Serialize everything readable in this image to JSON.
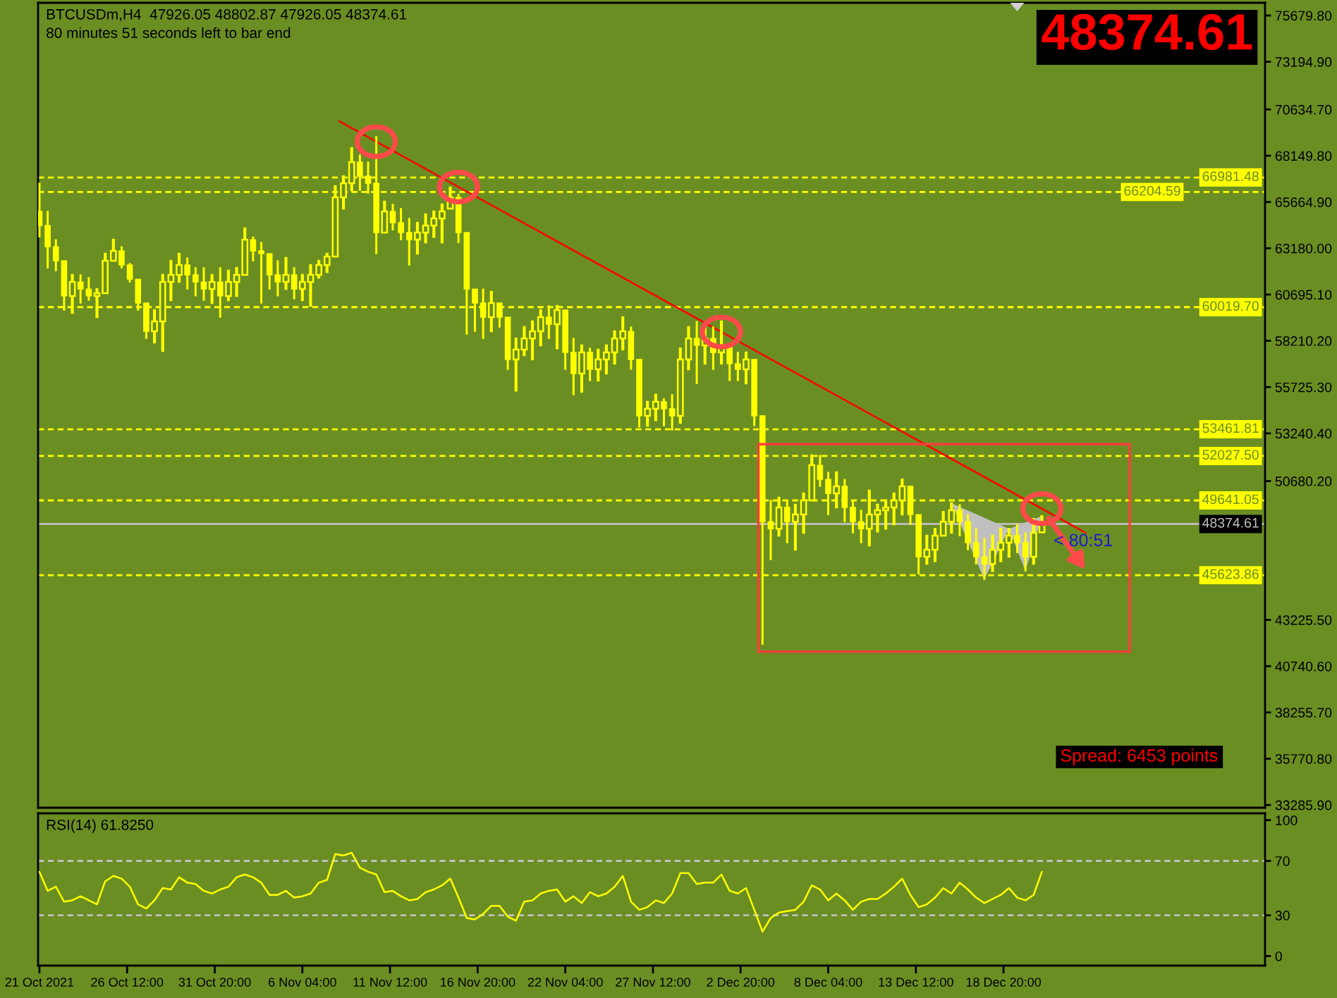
{
  "chart_data": [
    {
      "type": "candlestick",
      "title": "BTCUSDm,H4  47926.05 48802.87 47926.05 48374.61",
      "subtitle": "80 minutes 51 seconds left to bar end",
      "color": "#ffff00",
      "x": [
        "2021-10-21T04:00",
        "2021-10-21T16:00",
        "2021-10-22T04:00",
        "2021-10-22T16:00",
        "2021-10-23T04:00",
        "2021-10-23T16:00",
        "2021-10-24T04:00",
        "2021-10-24T16:00",
        "2021-10-25T04:00",
        "2021-10-25T16:00",
        "2021-10-26T04:00",
        "2021-10-26T16:00",
        "2021-10-27T04:00",
        "2021-10-27T16:00",
        "2021-10-28T04:00",
        "2021-10-28T16:00",
        "2021-10-29T04:00",
        "2021-10-29T16:00",
        "2021-10-30T04:00",
        "2021-10-30T16:00",
        "2021-10-31T04:00",
        "2021-10-31T16:00",
        "2021-11-01T04:00",
        "2021-11-01T16:00",
        "2021-11-02T04:00",
        "2021-11-02T16:00",
        "2021-11-03T04:00",
        "2021-11-03T16:00",
        "2021-11-04T04:00",
        "2021-11-04T16:00",
        "2021-11-05T04:00",
        "2021-11-05T16:00",
        "2021-11-06T04:00",
        "2021-11-06T16:00",
        "2021-11-07T04:00",
        "2021-11-07T16:00",
        "2021-11-08T04:00",
        "2021-11-08T16:00",
        "2021-11-09T04:00",
        "2021-11-09T16:00",
        "2021-11-10T04:00",
        "2021-11-10T16:00",
        "2021-11-11T04:00",
        "2021-11-11T16:00",
        "2021-11-12T04:00",
        "2021-11-12T16:00",
        "2021-11-13T04:00",
        "2021-11-13T16:00",
        "2021-11-14T04:00",
        "2021-11-14T16:00",
        "2021-11-15T04:00",
        "2021-11-15T16:00",
        "2021-11-16T04:00",
        "2021-11-16T16:00",
        "2021-11-17T04:00",
        "2021-11-17T16:00",
        "2021-11-18T04:00",
        "2021-11-18T16:00",
        "2021-11-19T04:00",
        "2021-11-19T16:00",
        "2021-11-20T04:00",
        "2021-11-20T16:00",
        "2021-11-21T04:00",
        "2021-11-21T16:00",
        "2021-11-22T04:00",
        "2021-11-22T16:00",
        "2021-11-23T04:00",
        "2021-11-23T16:00",
        "2021-11-24T04:00",
        "2021-11-24T16:00",
        "2021-11-25T04:00",
        "2021-11-25T16:00",
        "2021-11-26T04:00",
        "2021-11-26T16:00",
        "2021-11-27T04:00",
        "2021-11-27T16:00",
        "2021-11-28T04:00",
        "2021-11-28T16:00",
        "2021-11-29T04:00",
        "2021-11-29T16:00",
        "2021-11-30T04:00",
        "2021-11-30T16:00",
        "2021-12-01T04:00",
        "2021-12-01T16:00",
        "2021-12-02T04:00",
        "2021-12-02T16:00",
        "2021-12-03T04:00",
        "2021-12-03T16:00",
        "2021-12-04T04:00",
        "2021-12-04T16:00",
        "2021-12-05T04:00",
        "2021-12-05T16:00",
        "2021-12-06T04:00",
        "2021-12-06T16:00",
        "2021-12-07T04:00",
        "2021-12-07T16:00",
        "2021-12-08T04:00",
        "2021-12-08T16:00",
        "2021-12-09T04:00",
        "2021-12-09T16:00",
        "2021-12-10T04:00",
        "2021-12-10T16:00",
        "2021-12-11T04:00",
        "2021-12-11T16:00",
        "2021-12-12T04:00",
        "2021-12-12T16:00",
        "2021-12-13T04:00",
        "2021-12-13T16:00",
        "2021-12-14T04:00",
        "2021-12-14T16:00",
        "2021-12-15T04:00",
        "2021-12-15T16:00",
        "2021-12-16T04:00",
        "2021-12-16T16:00",
        "2021-12-17T04:00",
        "2021-12-17T16:00",
        "2021-12-18T04:00",
        "2021-12-18T16:00",
        "2021-12-19T04:00",
        "2021-12-19T16:00",
        "2021-12-20T04:00",
        "2021-12-20T16:00",
        "2021-12-21T04:00"
      ],
      "ohlc": [
        [
          65160,
          66670,
          63790,
          64400
        ],
        [
          64400,
          65160,
          62130,
          63260
        ],
        [
          63260,
          63640,
          61980,
          62510
        ],
        [
          62510,
          62510,
          59860,
          60620
        ],
        [
          60620,
          61750,
          59710,
          61370
        ],
        [
          61370,
          61750,
          60240,
          60990
        ],
        [
          60990,
          61600,
          60390,
          60620
        ],
        [
          60620,
          60990,
          59480,
          60770
        ],
        [
          60770,
          62890,
          60770,
          62510
        ],
        [
          62510,
          63640,
          62510,
          63040
        ],
        [
          63040,
          63260,
          62130,
          62280
        ],
        [
          62280,
          62360,
          61370,
          61520
        ],
        [
          61520,
          61520,
          59860,
          60240
        ],
        [
          60240,
          60240,
          58340,
          58720
        ],
        [
          58720,
          59860,
          58120,
          59250
        ],
        [
          59250,
          61750,
          57660,
          61370
        ],
        [
          61370,
          62510,
          60390,
          61750
        ],
        [
          61750,
          62890,
          61370,
          62280
        ],
        [
          62280,
          62660,
          60990,
          61750
        ],
        [
          61750,
          62130,
          60620,
          61370
        ],
        [
          61370,
          62130,
          60390,
          60990
        ],
        [
          60990,
          61750,
          60240,
          61370
        ],
        [
          61370,
          62130,
          59480,
          60620
        ],
        [
          60620,
          61980,
          60390,
          61370
        ],
        [
          61370,
          62130,
          60620,
          61750
        ],
        [
          61750,
          64250,
          61750,
          63640
        ],
        [
          63640,
          63790,
          62510,
          63040
        ],
        [
          63040,
          63490,
          60240,
          62890
        ],
        [
          62890,
          62890,
          60990,
          61750
        ],
        [
          61750,
          62510,
          60620,
          61370
        ],
        [
          61370,
          62660,
          60990,
          61750
        ],
        [
          61750,
          62130,
          60460,
          60990
        ],
        [
          60990,
          61750,
          60390,
          61370
        ],
        [
          61370,
          62280,
          60090,
          61750
        ],
        [
          61750,
          62510,
          61600,
          62280
        ],
        [
          62280,
          62890,
          61900,
          62740
        ],
        [
          62740,
          66520,
          62740,
          65910
        ],
        [
          65910,
          67050,
          65310,
          66670
        ],
        [
          66670,
          68560,
          66290,
          67810
        ],
        [
          67810,
          68190,
          66290,
          67050
        ],
        [
          67050,
          67810,
          66140,
          66670
        ],
        [
          66670,
          69170,
          62890,
          64020
        ],
        [
          64020,
          65690,
          64020,
          65160
        ],
        [
          65160,
          65540,
          64170,
          64550
        ],
        [
          64550,
          65310,
          63640,
          64020
        ],
        [
          64020,
          64780,
          62280,
          63640
        ],
        [
          63640,
          64550,
          62890,
          64020
        ],
        [
          64020,
          65010,
          63490,
          64400
        ],
        [
          64400,
          65160,
          63790,
          64780
        ],
        [
          64780,
          65540,
          63490,
          65160
        ],
        [
          65310,
          66440,
          65310,
          65910
        ],
        [
          65910,
          66070,
          63490,
          64020
        ],
        [
          64020,
          64020,
          58570,
          60990
        ],
        [
          60990,
          60990,
          58720,
          60240
        ],
        [
          60240,
          60990,
          58340,
          59480
        ],
        [
          59480,
          60840,
          58720,
          60240
        ],
        [
          60240,
          60240,
          58950,
          59480
        ],
        [
          59480,
          59480,
          56680,
          57210
        ],
        [
          57210,
          58340,
          55540,
          57740
        ],
        [
          57740,
          58950,
          57440,
          58340
        ],
        [
          58340,
          59250,
          57210,
          58720
        ],
        [
          58720,
          59860,
          57970,
          59480
        ],
        [
          59480,
          60090,
          58340,
          59100
        ],
        [
          59100,
          60090,
          57810,
          59860
        ],
        [
          59860,
          59860,
          56680,
          57590
        ],
        [
          57590,
          58340,
          55320,
          56450
        ],
        [
          56450,
          57970,
          55470,
          57590
        ],
        [
          57590,
          57810,
          56070,
          56680
        ],
        [
          56680,
          57740,
          56070,
          57210
        ],
        [
          57210,
          57970,
          56450,
          57590
        ],
        [
          57590,
          58720,
          56980,
          58340
        ],
        [
          58340,
          59480,
          57740,
          58720
        ],
        [
          58720,
          58950,
          56680,
          57210
        ],
        [
          57210,
          57210,
          53580,
          54180
        ],
        [
          54180,
          54940,
          53650,
          54560
        ],
        [
          54560,
          55320,
          53950,
          54940
        ],
        [
          54940,
          55090,
          53650,
          54560
        ],
        [
          54560,
          55320,
          53420,
          54180
        ],
        [
          54180,
          57810,
          53800,
          57210
        ],
        [
          57210,
          58950,
          56680,
          58340
        ],
        [
          58340,
          59250,
          55920,
          57970
        ],
        [
          57970,
          59100,
          56980,
          58340
        ],
        [
          58340,
          58950,
          56680,
          57590
        ],
        [
          57590,
          59250,
          56980,
          57970
        ],
        [
          57970,
          57970,
          56070,
          56980
        ],
        [
          56980,
          57590,
          56070,
          56680
        ],
        [
          56680,
          57590,
          55920,
          57210
        ],
        [
          57210,
          57210,
          53650,
          54180
        ],
        [
          54180,
          54180,
          41920,
          48500
        ],
        [
          48500,
          49640,
          46460,
          48120
        ],
        [
          48120,
          49790,
          47750,
          49260
        ],
        [
          49260,
          49640,
          47370,
          48500
        ],
        [
          48500,
          49410,
          46990,
          48880
        ],
        [
          48880,
          50020,
          47900,
          49640
        ],
        [
          49640,
          52060,
          49640,
          51530
        ],
        [
          51530,
          52060,
          50400,
          50770
        ],
        [
          50770,
          51150,
          48880,
          50020
        ],
        [
          50020,
          51150,
          49260,
          50400
        ],
        [
          50400,
          50770,
          48500,
          49260
        ],
        [
          49260,
          49640,
          47900,
          48500
        ],
        [
          48500,
          49110,
          47370,
          48120
        ],
        [
          48120,
          50170,
          47220,
          48880
        ],
        [
          48880,
          49410,
          47970,
          49110
        ],
        [
          49110,
          49640,
          48120,
          49260
        ],
        [
          49260,
          50020,
          48350,
          49640
        ],
        [
          49640,
          50770,
          48880,
          50400
        ],
        [
          50400,
          50400,
          48350,
          48880
        ],
        [
          48880,
          48880,
          45700,
          46610
        ],
        [
          46610,
          47750,
          46230,
          46990
        ],
        [
          46990,
          48120,
          46380,
          47750
        ],
        [
          47750,
          49030,
          47750,
          48500
        ],
        [
          48500,
          49490,
          47900,
          49110
        ],
        [
          49110,
          49410,
          47750,
          48500
        ],
        [
          48500,
          48880,
          46990,
          47370
        ],
        [
          47370,
          48120,
          46230,
          46610
        ],
        [
          46610,
          47600,
          45400,
          46230
        ],
        [
          46230,
          47750,
          45850,
          46990
        ],
        [
          46990,
          48120,
          46380,
          47370
        ],
        [
          47370,
          48120,
          46610,
          47750
        ],
        [
          47750,
          48350,
          46840,
          47370
        ],
        [
          47370,
          47900,
          45850,
          46610
        ],
        [
          46610,
          48650,
          46230,
          47900
        ],
        [
          47926.05,
          48802.87,
          47926.05,
          48374.61
        ]
      ],
      "series": [
        {
          "type": "line",
          "x": [
            "2021-11-08T10:00",
            "2021-12-23T20:00"
          ],
          "values": [
            70000,
            47900
          ],
          "color": "#ff0000"
        }
      ],
      "xlim": [
        "2021-10-21T02:00",
        "2022-01-03T18:00"
      ],
      "ylim": [
        33140,
        76360
      ],
      "yticks": [
        {
          "value": 75679.8,
          "label": "75679.80"
        },
        {
          "value": 73194.9,
          "label": "73194.90"
        },
        {
          "value": 70634.7,
          "label": "70634.70"
        },
        {
          "value": 68149.8,
          "label": "68149.80"
        },
        {
          "value": 65664.9,
          "label": "65664.90"
        },
        {
          "value": 63180,
          "label": "63180.00"
        },
        {
          "value": 60695.1,
          "label": "60695.10"
        },
        {
          "value": 58210.2,
          "label": "58210.20"
        },
        {
          "value": 55725.3,
          "label": "55725.30"
        },
        {
          "value": 53240.4,
          "label": "53240.40"
        },
        {
          "value": 50680.2,
          "label": "50680.20"
        },
        {
          "value": 43225.5,
          "label": "43225.50"
        },
        {
          "value": 40740.6,
          "label": "40740.60"
        },
        {
          "value": 38255.7,
          "label": "38255.70"
        },
        {
          "value": 35770.8,
          "label": "35770.80"
        },
        {
          "value": 33285.9,
          "label": "33285.90"
        }
      ],
      "tick_labels": "y",
      "ref_lines": [
        {
          "axis": "y",
          "value": 66981.48,
          "label": "66981.48",
          "color": "#ffff00",
          "line_style": "dashed"
        },
        {
          "axis": "y",
          "value": 66204.59,
          "label": "66204.59",
          "color": "#ffff00",
          "line_style": "dashed"
        },
        {
          "axis": "y",
          "value": 60019.7,
          "label": "60019.70",
          "color": "#ffff00",
          "line_style": "dashed"
        },
        {
          "axis": "y",
          "value": 53461.81,
          "label": "53461.81",
          "color": "#ffff00",
          "line_style": "dashed"
        },
        {
          "axis": "y",
          "value": 52027.5,
          "label": "52027.50",
          "color": "#ffff00",
          "line_style": "dashed"
        },
        {
          "axis": "y",
          "value": 49641.05,
          "label": "49641.05",
          "color": "#ffff00",
          "line_style": "dashed"
        },
        {
          "axis": "y",
          "value": 45623.86,
          "label": "45623.86",
          "color": "#ffff00",
          "line_style": "dashed"
        },
        {
          "axis": "y",
          "value": 48374.61,
          "label": "48374.61",
          "color": "#c0c0c0",
          "line_style": "solid"
        }
      ],
      "annotations": [
        "48374.61",
        {
          "text": "< 80:51",
          "x": "2021-12-21T04:00",
          "y": 48374.61
        },
        "Spread: 6453 points"
      ]
    },
    {
      "type": "line",
      "title": "RSI(14) 61.8250",
      "color": "#ffff00",
      "x": [
        "2021-10-21T04:00",
        "2021-10-21T16:00",
        "2021-10-22T04:00",
        "2021-10-22T16:00",
        "2021-10-23T04:00",
        "2021-10-23T16:00",
        "2021-10-24T04:00",
        "2021-10-24T16:00",
        "2021-10-25T04:00",
        "2021-10-25T16:00",
        "2021-10-26T04:00",
        "2021-10-26T16:00",
        "2021-10-27T04:00",
        "2021-10-27T16:00",
        "2021-10-28T04:00",
        "2021-10-28T16:00",
        "2021-10-29T04:00",
        "2021-10-29T16:00",
        "2021-10-30T04:00",
        "2021-10-30T16:00",
        "2021-10-31T04:00",
        "2021-10-31T16:00",
        "2021-11-01T04:00",
        "2021-11-01T16:00",
        "2021-11-02T04:00",
        "2021-11-02T16:00",
        "2021-11-03T04:00",
        "2021-11-03T16:00",
        "2021-11-04T04:00",
        "2021-11-04T16:00",
        "2021-11-05T04:00",
        "2021-11-05T16:00",
        "2021-11-06T04:00",
        "2021-11-06T16:00",
        "2021-11-07T04:00",
        "2021-11-07T16:00",
        "2021-11-08T04:00",
        "2021-11-08T16:00",
        "2021-11-09T04:00",
        "2021-11-09T16:00",
        "2021-11-10T04:00",
        "2021-11-10T16:00",
        "2021-11-11T04:00",
        "2021-11-11T16:00",
        "2021-11-12T04:00",
        "2021-11-12T16:00",
        "2021-11-13T04:00",
        "2021-11-13T16:00",
        "2021-11-14T04:00",
        "2021-11-14T16:00",
        "2021-11-15T04:00",
        "2021-11-15T16:00",
        "2021-11-16T04:00",
        "2021-11-16T16:00",
        "2021-11-17T04:00",
        "2021-11-17T16:00",
        "2021-11-18T04:00",
        "2021-11-18T16:00",
        "2021-11-19T04:00",
        "2021-11-19T16:00",
        "2021-11-20T04:00",
        "2021-11-20T16:00",
        "2021-11-21T04:00",
        "2021-11-21T16:00",
        "2021-11-22T04:00",
        "2021-11-22T16:00",
        "2021-11-23T04:00",
        "2021-11-23T16:00",
        "2021-11-24T04:00",
        "2021-11-24T16:00",
        "2021-11-25T04:00",
        "2021-11-25T16:00",
        "2021-11-26T04:00",
        "2021-11-26T16:00",
        "2021-11-27T04:00",
        "2021-11-27T16:00",
        "2021-11-28T04:00",
        "2021-11-28T16:00",
        "2021-11-29T04:00",
        "2021-11-29T16:00",
        "2021-11-30T04:00",
        "2021-11-30T16:00",
        "2021-12-01T04:00",
        "2021-12-01T16:00",
        "2021-12-02T04:00",
        "2021-12-02T16:00",
        "2021-12-03T04:00",
        "2021-12-03T16:00",
        "2021-12-04T04:00",
        "2021-12-04T16:00",
        "2021-12-05T04:00",
        "2021-12-05T16:00",
        "2021-12-06T04:00",
        "2021-12-06T16:00",
        "2021-12-07T04:00",
        "2021-12-07T16:00",
        "2021-12-08T04:00",
        "2021-12-08T16:00",
        "2021-12-09T04:00",
        "2021-12-09T16:00",
        "2021-12-10T04:00",
        "2021-12-10T16:00",
        "2021-12-11T04:00",
        "2021-12-11T16:00",
        "2021-12-12T04:00",
        "2021-12-12T16:00",
        "2021-12-13T04:00",
        "2021-12-13T16:00",
        "2021-12-14T04:00",
        "2021-12-14T16:00",
        "2021-12-15T04:00",
        "2021-12-15T16:00",
        "2021-12-16T04:00",
        "2021-12-16T16:00",
        "2021-12-17T04:00",
        "2021-12-17T16:00",
        "2021-12-18T04:00",
        "2021-12-18T16:00",
        "2021-12-19T04:00",
        "2021-12-19T16:00",
        "2021-12-20T04:00",
        "2021-12-20T16:00",
        "2021-12-21T04:00"
      ],
      "values": [
        62,
        48,
        51,
        40,
        41,
        44,
        41,
        38,
        55,
        59,
        57,
        51,
        38,
        35,
        41,
        50,
        49,
        58,
        54,
        53,
        48,
        46,
        49,
        51,
        58,
        60,
        58,
        54,
        45,
        45,
        48,
        43,
        44,
        46,
        54,
        56,
        75,
        74,
        76,
        65,
        62,
        60,
        47,
        48,
        44,
        41,
        42,
        47,
        49,
        52,
        57,
        43,
        28,
        27,
        31,
        37,
        37,
        29,
        26,
        40,
        41,
        46,
        48,
        49,
        40,
        44,
        39,
        47,
        44,
        46,
        51,
        59,
        40,
        34,
        36,
        41,
        39,
        46,
        61,
        61,
        53,
        54,
        54,
        60,
        48,
        46,
        50,
        34,
        18,
        28,
        32,
        33,
        34,
        40,
        52,
        49,
        41,
        46,
        41,
        34,
        40,
        42,
        42,
        46,
        51,
        57,
        45,
        36,
        38,
        43,
        50,
        46,
        54,
        49,
        43,
        39,
        42,
        45,
        50,
        43,
        41,
        45,
        62
      ],
      "xlim": [
        "2021-10-21T02:00",
        "2022-01-03T18:00"
      ],
      "xticks": [
        {
          "value": "2021-10-21T04:00",
          "label": "21 Oct 2021"
        },
        {
          "value": "2021-10-26T12:00",
          "label": "26 Oct 12:00"
        },
        {
          "value": "2021-10-31T20:00",
          "label": "31 Oct 20:00"
        },
        {
          "value": "2021-11-06T04:00",
          "label": "6 Nov 04:00"
        },
        {
          "value": "2021-11-11T12:00",
          "label": "11 Nov 12:00"
        },
        {
          "value": "2021-11-16T20:00",
          "label": "16 Nov 20:00"
        },
        {
          "value": "2021-11-22T04:00",
          "label": "22 Nov 04:00"
        },
        {
          "value": "2021-11-27T12:00",
          "label": "27 Nov 12:00"
        },
        {
          "value": "2021-12-02T20:00",
          "label": "2 Dec 20:00"
        },
        {
          "value": "2021-12-08T04:00",
          "label": "8 Dec 04:00"
        },
        {
          "value": "2021-12-13T12:00",
          "label": "13 Dec 12:00"
        },
        {
          "value": "2021-12-18T20:00",
          "label": "18 Dec 20:00"
        }
      ],
      "ylim": [
        -7,
        105
      ],
      "yticks": [
        100,
        70,
        30,
        0
      ],
      "ref_lines": [
        {
          "axis": "y",
          "value": 70,
          "color": "#c0c0c0",
          "line_style": "dashed"
        },
        {
          "axis": "y",
          "value": 30,
          "color": "#c0c0c0",
          "line_style": "dashed"
        }
      ]
    }
  ]
}
